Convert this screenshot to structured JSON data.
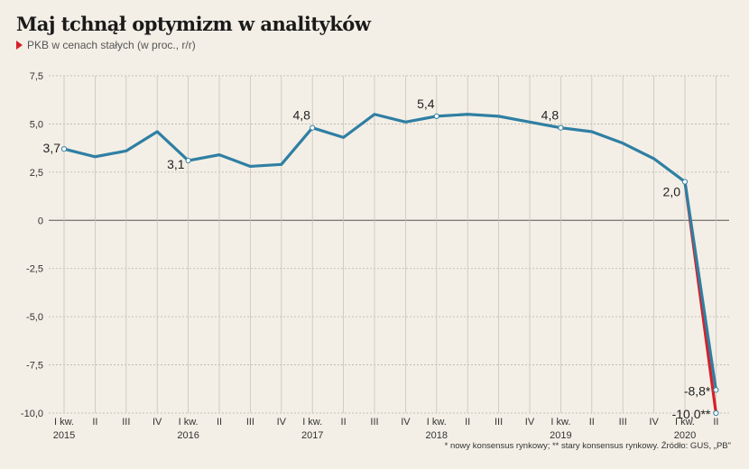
{
  "header": {
    "title": "Maj tchnął optymizm w analityków",
    "subtitle": "PKB w cenach stałych (w proc., r/r)"
  },
  "footnote": "* nowy konsensus rynkowy; ** stary konsensus rynkowy. Źródło: GUS, „PB\"",
  "colors": {
    "main_line": "#2f7fa3",
    "old_forecast_line": "#d6202a",
    "background": "#f3efe6"
  },
  "chart_data": {
    "type": "line",
    "ylim": [
      -10,
      7.5
    ],
    "yticks": [
      -10,
      -7.5,
      -5,
      -2.5,
      0,
      2.5,
      5,
      7.5
    ],
    "ytick_labels": [
      "-10,0",
      "-7,5",
      "-5,0",
      "-2,5",
      "0",
      "2,5",
      "5,0",
      "7,5"
    ],
    "grid": true,
    "quarter_labels": [
      "I kw.",
      "II",
      "III",
      "IV",
      "I kw.",
      "II",
      "III",
      "IV",
      "I kw.",
      "II",
      "III",
      "IV",
      "I kw.",
      "II",
      "III",
      "IV",
      "I kw.",
      "II",
      "III",
      "IV",
      "I kw.",
      "II"
    ],
    "year_labels": [
      {
        "index": 0,
        "label": "2015"
      },
      {
        "index": 4,
        "label": "2016"
      },
      {
        "index": 8,
        "label": "2017"
      },
      {
        "index": 12,
        "label": "2018"
      },
      {
        "index": 16,
        "label": "2019"
      },
      {
        "index": 20,
        "label": "2020"
      }
    ],
    "series": [
      {
        "values": [
          3.7,
          3.3,
          3.6,
          4.6,
          3.1,
          3.4,
          2.8,
          2.9,
          4.8,
          4.3,
          5.5,
          5.1,
          5.4,
          5.5,
          5.4,
          5.1,
          4.8,
          4.6,
          4.0,
          3.2,
          2.0,
          -8.8
        ],
        "color": "#2f7fa3"
      },
      {
        "x_index": [
          20,
          21
        ],
        "values": [
          2.0,
          -10.0
        ],
        "color": "#d6202a"
      }
    ],
    "annotations": [
      {
        "index": 0,
        "value": 3.7,
        "label": "3,7",
        "placement": "left"
      },
      {
        "index": 4,
        "value": 3.1,
        "label": "3,1",
        "placement": "left"
      },
      {
        "index": 8,
        "value": 4.8,
        "label": "4,8",
        "placement": "above"
      },
      {
        "index": 12,
        "value": 5.4,
        "label": "5,4",
        "placement": "above"
      },
      {
        "index": 16,
        "value": 4.8,
        "label": "4,8",
        "placement": "above"
      },
      {
        "index": 20,
        "value": 2.0,
        "label": "2,0",
        "placement": "left"
      },
      {
        "index": 21,
        "value": -8.8,
        "label": "-8,8*",
        "placement": "left"
      },
      {
        "index": 21,
        "value": -10.0,
        "label": "-10,0**",
        "placement": "left"
      }
    ]
  }
}
